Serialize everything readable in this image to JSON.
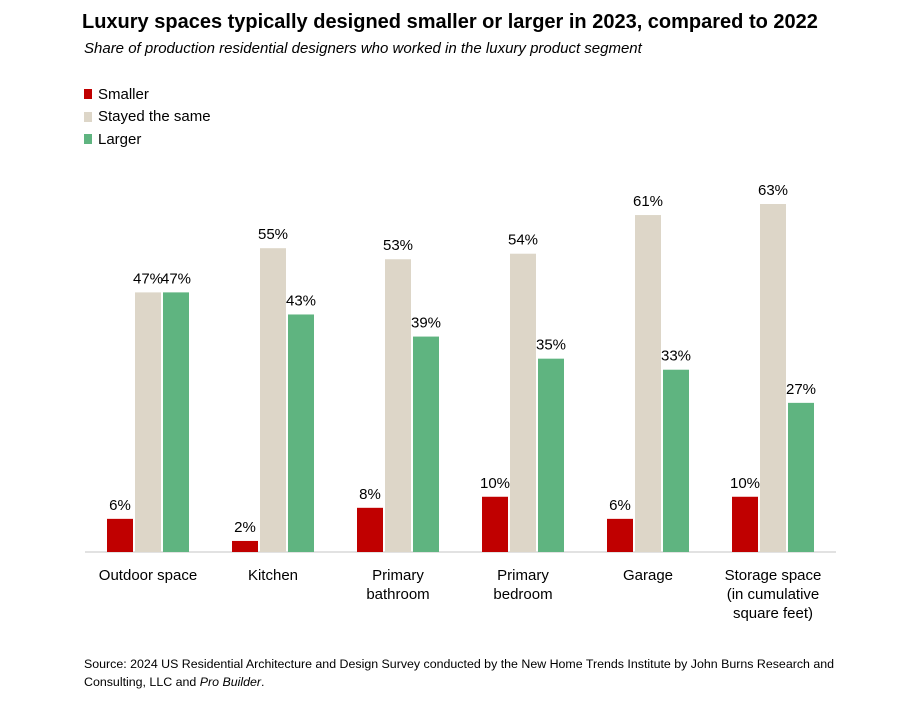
{
  "title": "Luxury spaces typically designed smaller or larger in 2023, compared to 2022",
  "subtitle": "Share of production residential designers who worked in the luxury product segment",
  "source": {
    "prefix": "Source: 2024 US Residential Architecture and Design Survey conducted by the New Home Trends Institute by John Burns Research and Consulting, LLC and ",
    "italic": "Pro Builder",
    "suffix": "."
  },
  "colors": {
    "Smaller": "#c00000",
    "Stayed the same": "#ddd6c8",
    "Larger": "#5fb480",
    "axis": "#d9d9d9"
  },
  "chart_data": {
    "type": "bar",
    "title": "Luxury spaces typically designed smaller or larger in 2023, compared to 2022",
    "subtitle": "Share of production residential designers who worked in the luxury product segment",
    "categories": [
      [
        "Outdoor space"
      ],
      [
        "Kitchen"
      ],
      [
        "Primary",
        "bathroom"
      ],
      [
        "Primary",
        "bedroom"
      ],
      [
        "Garage"
      ],
      [
        "Storage space",
        "(in cumulative",
        "square feet)"
      ]
    ],
    "series": [
      {
        "name": "Smaller",
        "values": [
          6,
          2,
          8,
          10,
          6,
          10
        ]
      },
      {
        "name": "Stayed the same",
        "values": [
          47,
          55,
          53,
          54,
          61,
          63
        ]
      },
      {
        "name": "Larger",
        "values": [
          47,
          43,
          39,
          35,
          33,
          27
        ]
      }
    ],
    "value_suffix": "%",
    "ylim": [
      0,
      63
    ],
    "legend_position": "top-left",
    "grid": false,
    "data_labels": true
  }
}
